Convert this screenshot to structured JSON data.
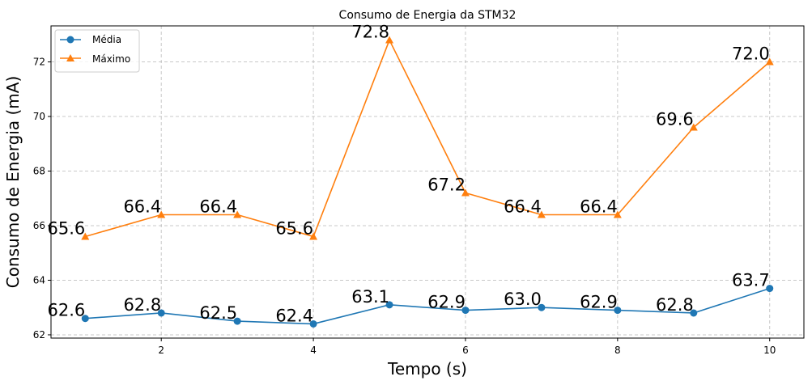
{
  "chart_data": {
    "type": "line",
    "title": "Consumo de Energia da STM32",
    "xlabel": "Tempo (s)",
    "ylabel": "Consumo de Energia (mA)",
    "x": [
      1,
      2,
      3,
      4,
      5,
      6,
      7,
      8,
      9,
      10
    ],
    "xlim": [
      0.55,
      10.45
    ],
    "ylim": [
      61.88,
      73.32
    ],
    "xticks": [
      2,
      4,
      6,
      8,
      10
    ],
    "yticks": [
      62,
      64,
      66,
      68,
      70,
      72
    ],
    "grid": true,
    "legend_position": "top-left",
    "series": [
      {
        "name": "Média",
        "color": "#1f77b4",
        "marker": "circle",
        "values": [
          62.6,
          62.8,
          62.5,
          62.4,
          63.1,
          62.9,
          63.0,
          62.9,
          62.8,
          63.7
        ],
        "labels": [
          "62.6",
          "62.8",
          "62.5",
          "62.4",
          "63.1",
          "62.9",
          "63.0",
          "62.9",
          "62.8",
          "63.7"
        ]
      },
      {
        "name": "Máximo",
        "color": "#ff7f0e",
        "marker": "triangle",
        "values": [
          65.6,
          66.4,
          66.4,
          65.6,
          72.8,
          67.2,
          66.4,
          66.4,
          69.6,
          72.0
        ],
        "labels": [
          "65.6",
          "66.4",
          "66.4",
          "65.6",
          "72.8",
          "67.2",
          "66.4",
          "66.4",
          "69.6",
          "72.0"
        ]
      }
    ]
  }
}
